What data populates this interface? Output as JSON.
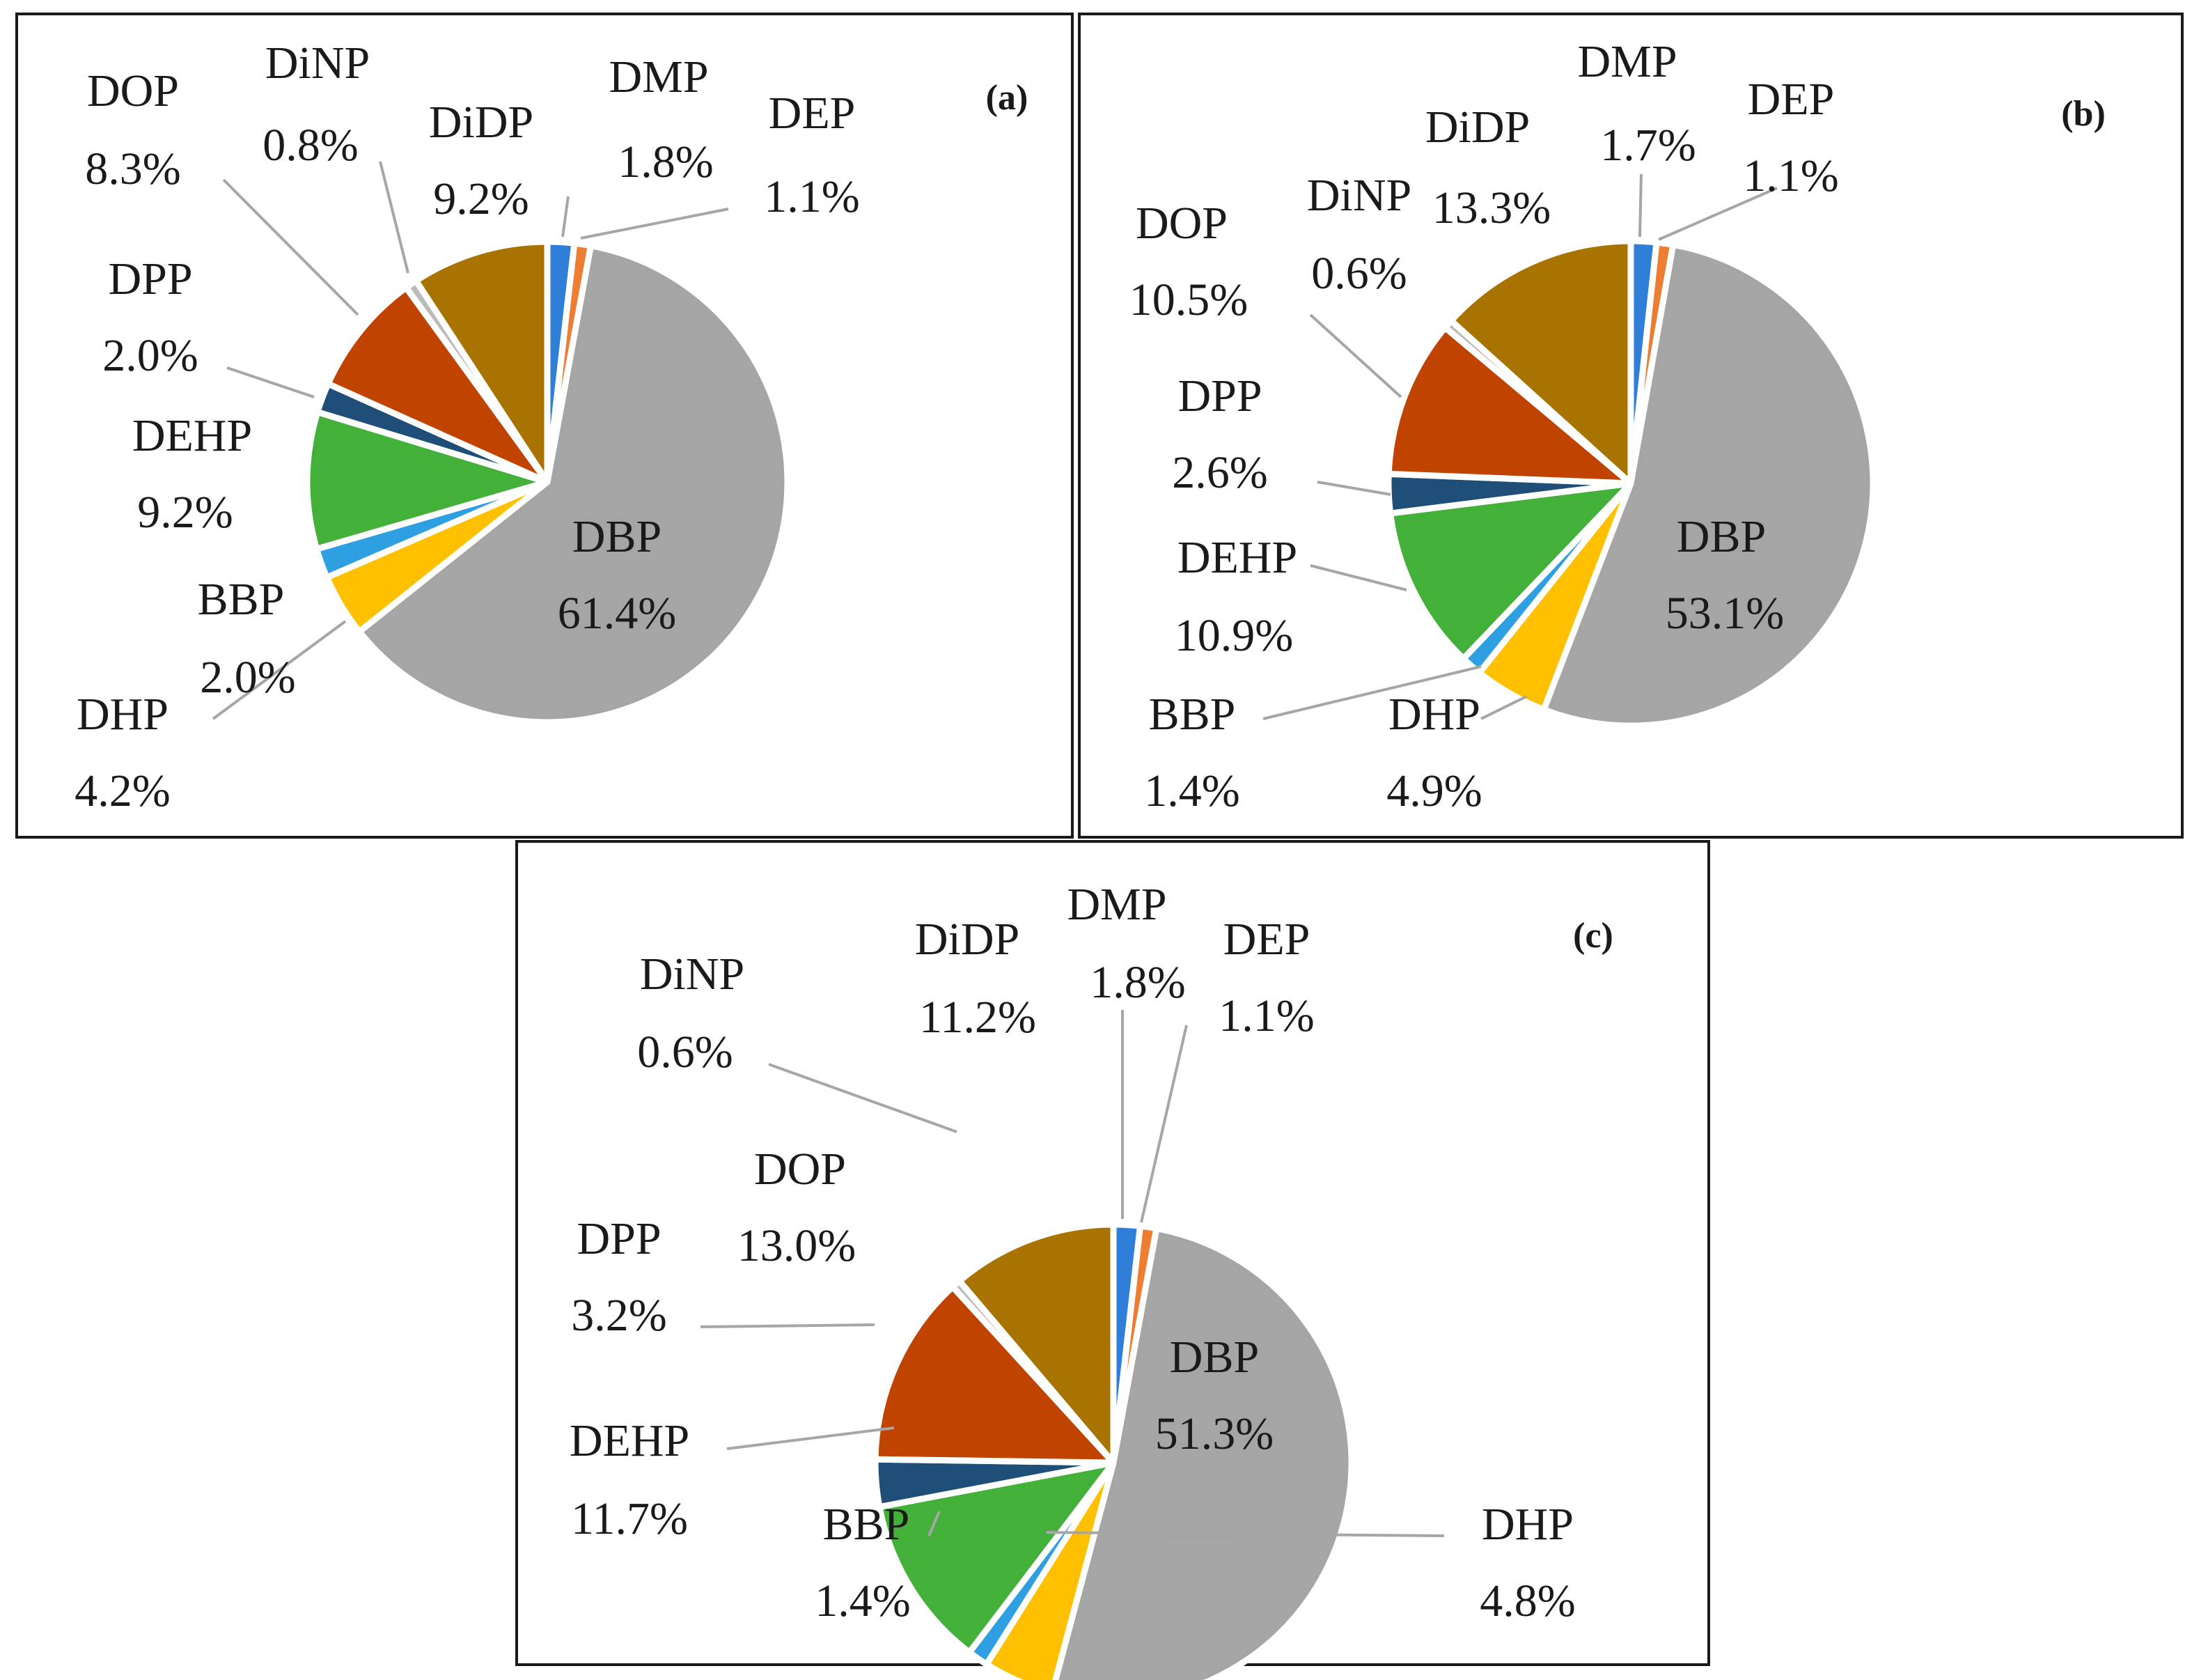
{
  "colors": {
    "DMP": "#2f7ed8",
    "DEP": "#ed7d31",
    "DBP": "#a5a5a5",
    "DHP": "#ffc000",
    "BBP": "#2e9fe0",
    "DEHP": "#43b03a",
    "DPP": "#1f4e79",
    "DOP": "#c04400",
    "DiNP": "#bbbbbb",
    "DiDP": "#a87300",
    "leader": "#a6a6a6"
  },
  "chart_data": [
    {
      "type": "pie",
      "panel_label": "(a)",
      "slices": [
        {
          "name": "DMP",
          "value": 1.8,
          "pct": "1.8%"
        },
        {
          "name": "DEP",
          "value": 1.1,
          "pct": "1.1%"
        },
        {
          "name": "DBP",
          "value": 61.4,
          "pct": "61.4%"
        },
        {
          "name": "DHP",
          "value": 4.2,
          "pct": "4.2%"
        },
        {
          "name": "BBP",
          "value": 2.0,
          "pct": "2.0%"
        },
        {
          "name": "DEHP",
          "value": 9.2,
          "pct": "9.2%"
        },
        {
          "name": "DPP",
          "value": 2.0,
          "pct": "2.0%"
        },
        {
          "name": "DOP",
          "value": 8.3,
          "pct": "8.3%"
        },
        {
          "name": "DiNP",
          "value": 0.8,
          "pct": "0.8%"
        },
        {
          "name": "DiDP",
          "value": 9.2,
          "pct": "9.2%"
        }
      ]
    },
    {
      "type": "pie",
      "panel_label": "(b)",
      "slices": [
        {
          "name": "DMP",
          "value": 1.7,
          "pct": "1.7%"
        },
        {
          "name": "DEP",
          "value": 1.1,
          "pct": "1.1%"
        },
        {
          "name": "DBP",
          "value": 53.1,
          "pct": "53.1%"
        },
        {
          "name": "DHP",
          "value": 4.9,
          "pct": "4.9%"
        },
        {
          "name": "BBP",
          "value": 1.4,
          "pct": "1.4%"
        },
        {
          "name": "DEHP",
          "value": 10.9,
          "pct": "10.9%"
        },
        {
          "name": "DPP",
          "value": 2.6,
          "pct": "2.6%"
        },
        {
          "name": "DOP",
          "value": 10.5,
          "pct": "10.5%"
        },
        {
          "name": "DiNP",
          "value": 0.6,
          "pct": "0.6%"
        },
        {
          "name": "DiDP",
          "value": 13.3,
          "pct": "13.3%"
        }
      ]
    },
    {
      "type": "pie",
      "panel_label": "(c)",
      "slices": [
        {
          "name": "DMP",
          "value": 1.8,
          "pct": "1.8%"
        },
        {
          "name": "DEP",
          "value": 1.1,
          "pct": "1.1%"
        },
        {
          "name": "DBP",
          "value": 51.3,
          "pct": "51.3%"
        },
        {
          "name": "DHP",
          "value": 4.8,
          "pct": "4.8%"
        },
        {
          "name": "BBP",
          "value": 1.4,
          "pct": "1.4%"
        },
        {
          "name": "DEHP",
          "value": 11.7,
          "pct": "11.7%"
        },
        {
          "name": "DPP",
          "value": 3.2,
          "pct": "3.2%"
        },
        {
          "name": "DOP",
          "value": 13.0,
          "pct": "13.0%"
        },
        {
          "name": "DiNP",
          "value": 0.6,
          "pct": "0.6%"
        },
        {
          "name": "DiDP",
          "value": 11.2,
          "pct": "11.2%"
        }
      ]
    }
  ]
}
